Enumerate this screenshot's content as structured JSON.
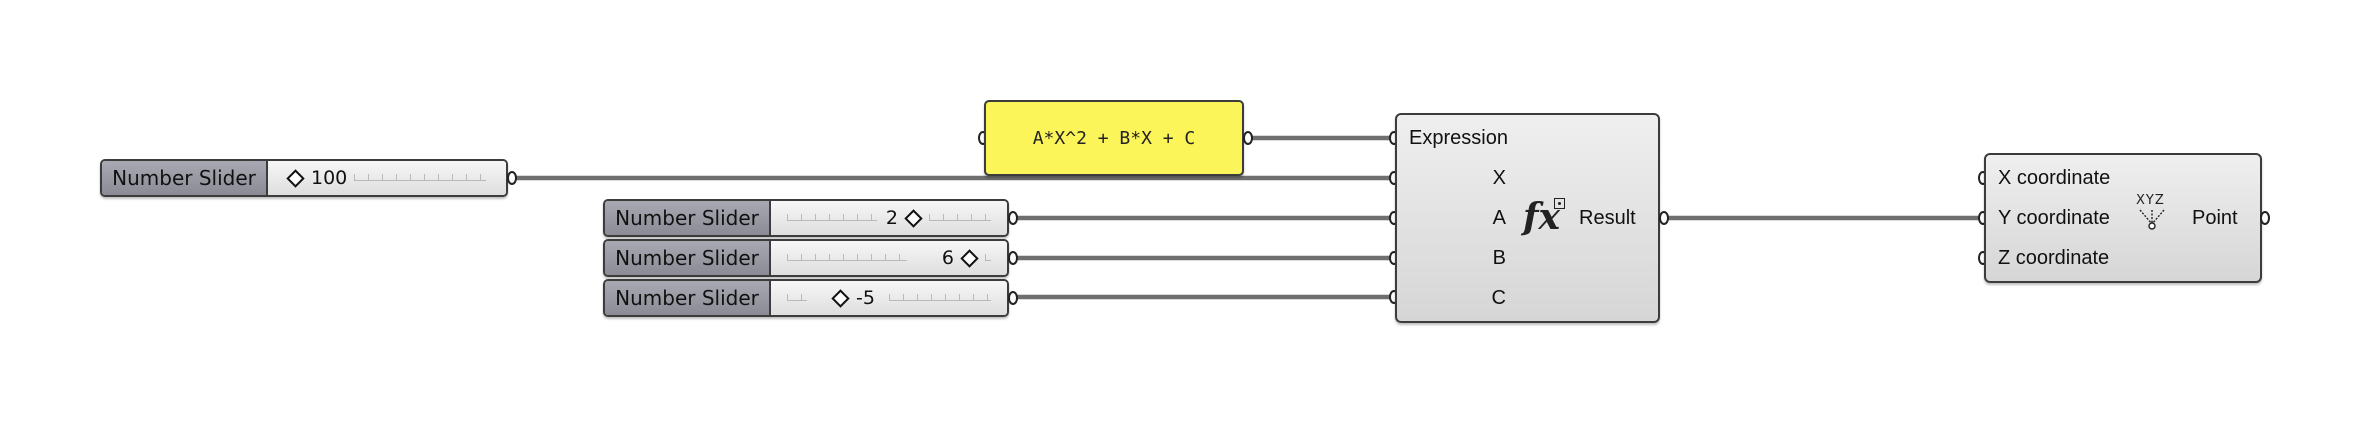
{
  "canvas": {
    "background": "#ffffff",
    "wire_color": "#707070"
  },
  "sliders": [
    {
      "label": "Number Slider",
      "value": "100",
      "position": 0.0
    },
    {
      "label": "Number Slider",
      "value": "2",
      "position": 0.52
    },
    {
      "label": "Number Slider",
      "value": "6",
      "position": 0.7
    },
    {
      "label": "Number Slider",
      "value": "-5",
      "position": 0.24
    }
  ],
  "panel": {
    "text": "A*X^2 + B*X + C",
    "color": "#fbf55a"
  },
  "expression": {
    "inputs": [
      "Expression",
      "X",
      "A",
      "B",
      "C"
    ],
    "output": "Result",
    "icon": "fx-icon"
  },
  "point": {
    "inputs": [
      "X coordinate",
      "Y coordinate",
      "Z coordinate"
    ],
    "output": "Point",
    "icon": "xyz-point-icon",
    "icon_text": "XYZ"
  }
}
